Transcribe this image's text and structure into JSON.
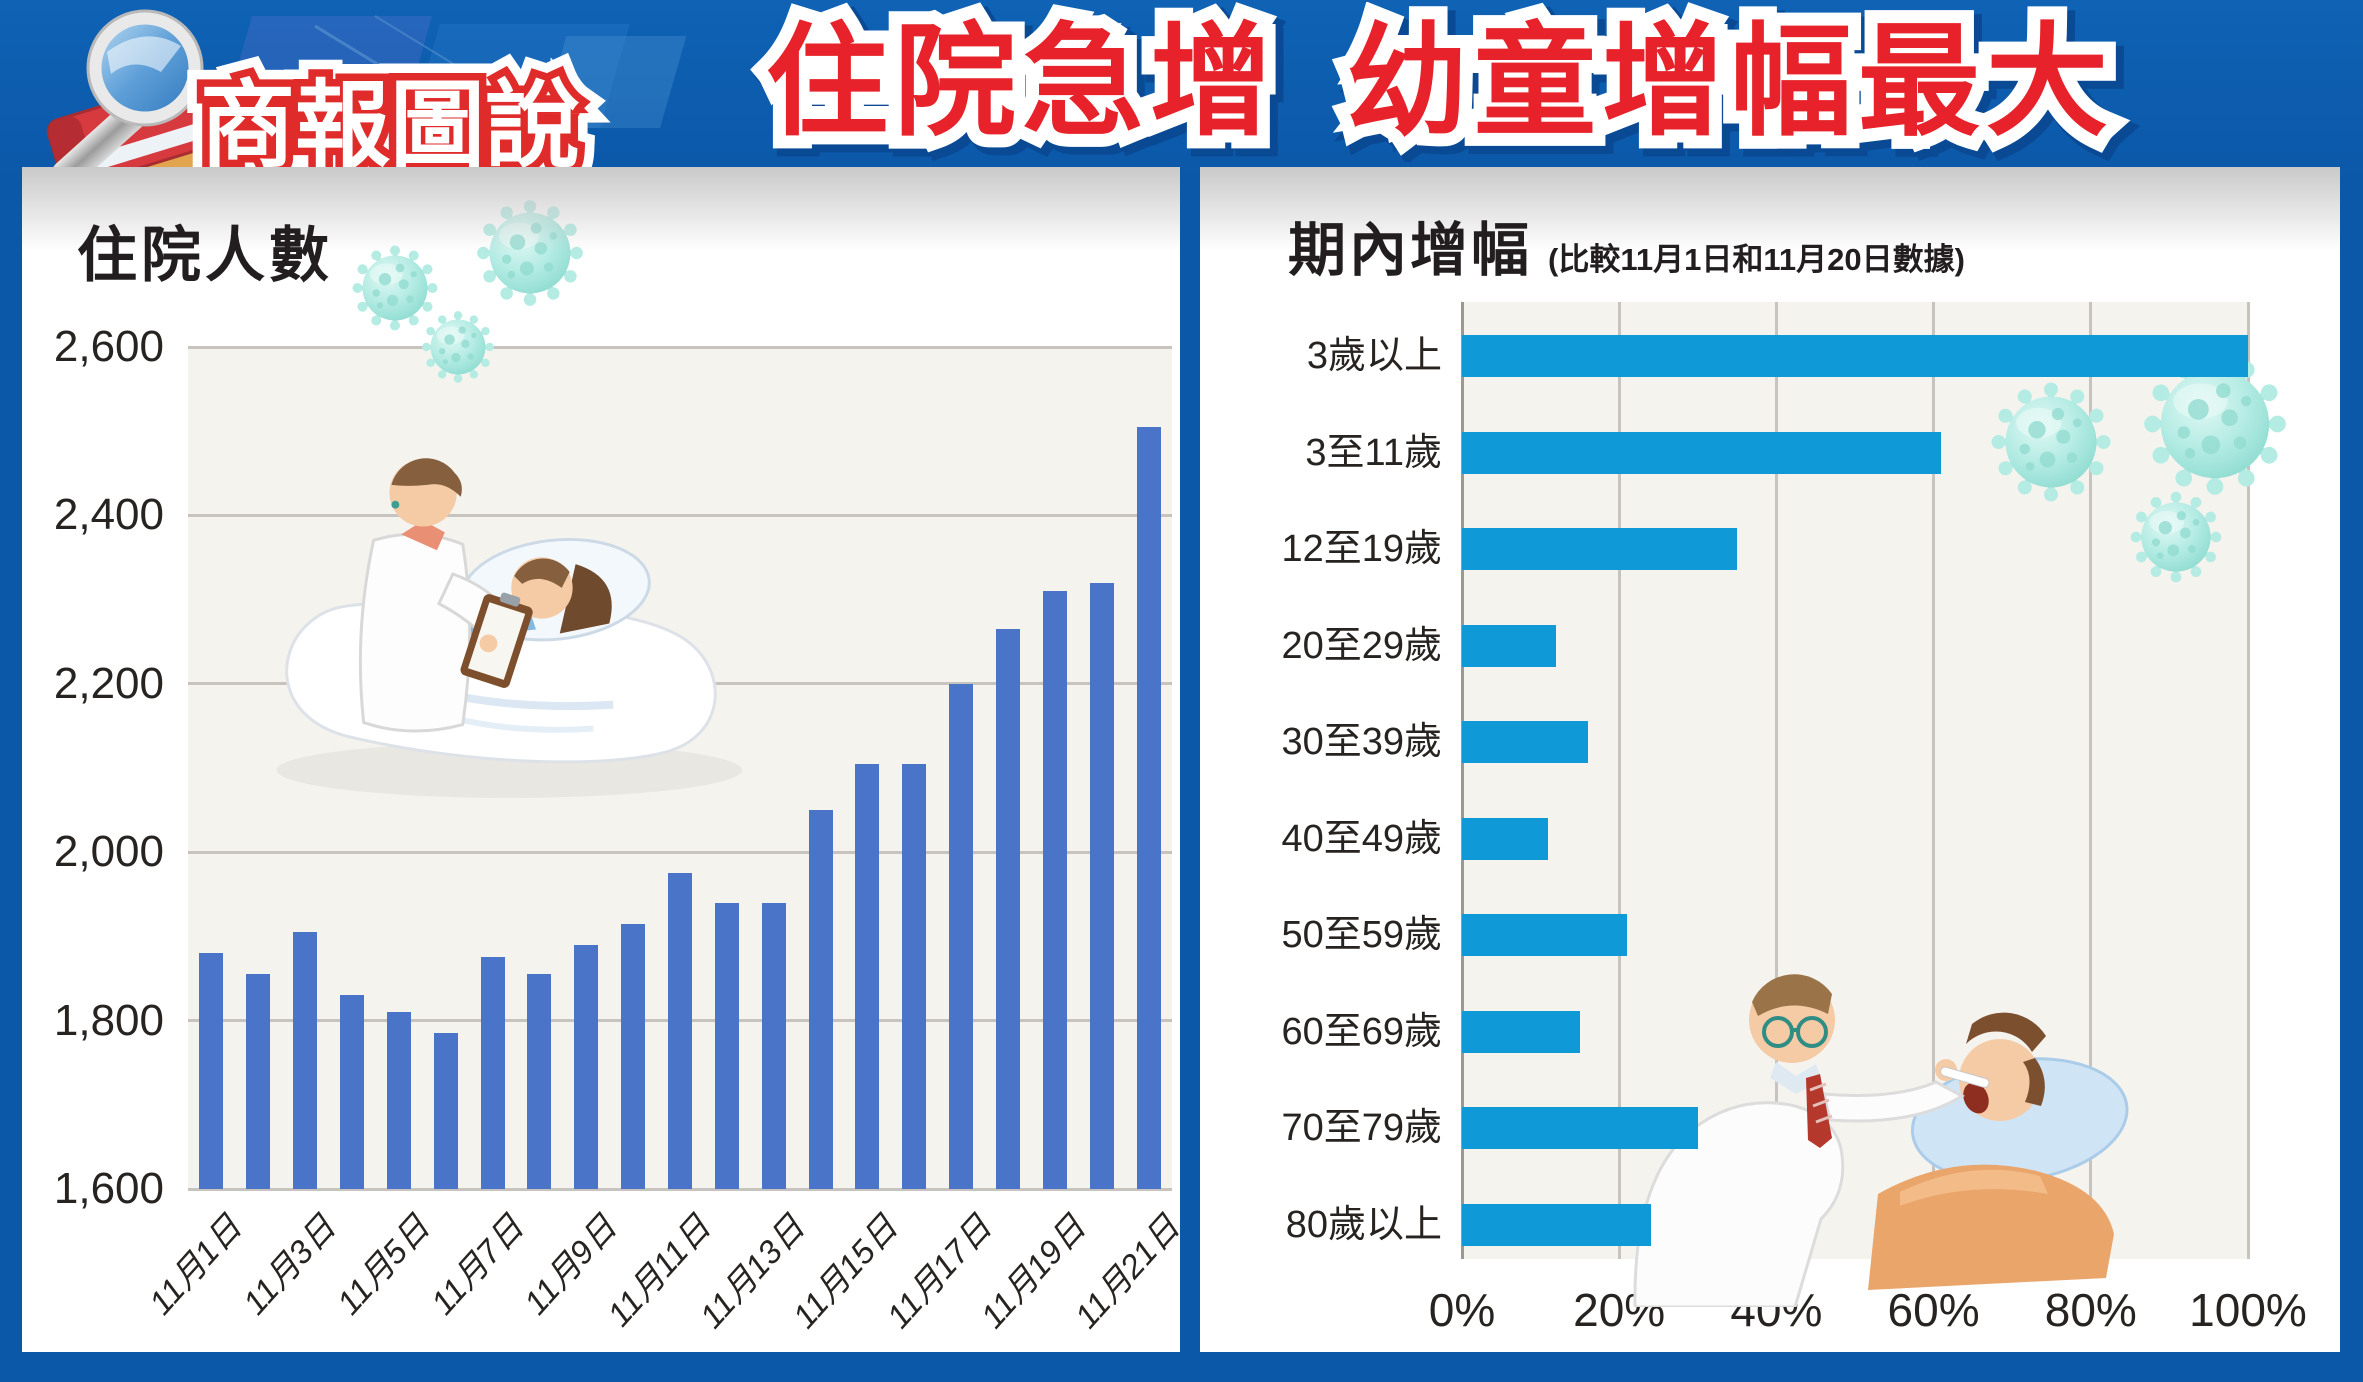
{
  "header": {
    "logo_text": "商報圖說",
    "title": "住院急增 幼童增幅最大"
  },
  "colors": {
    "page_blue": "#0b57a8",
    "title_red": "#e7222a",
    "title_shadow_blue": "#0a4a94",
    "left_bar_blue": "#4a74c8",
    "right_bar_blue": "#0f9ad7",
    "plot_background": "#f5f3ee",
    "gridline_gray": "#c7c4bf",
    "axis_gray": "#9c9994",
    "text_dark": "#272320"
  },
  "icons": {
    "logo": [
      "books-icon",
      "magnifier-icon"
    ],
    "decorations": [
      "virus-icon",
      "doctor-patient-illustration",
      "doctor-exam-illustration"
    ]
  },
  "chart_data": [
    {
      "type": "bar",
      "orientation": "vertical",
      "title": "住院人數",
      "ylim": [
        1600,
        2600
      ],
      "grid": true,
      "yticks": {
        "values": [
          2600,
          2400,
          2200,
          2000,
          1800,
          1600
        ],
        "labels": [
          "2,600",
          "2,400",
          "2,200",
          "2,000",
          "1,800",
          "1,600"
        ]
      },
      "x_labels": [
        "11月1日",
        "11月3日",
        "11月5日",
        "11月7日",
        "11月9日",
        "11月11日",
        "11月13日",
        "11月15日",
        "11月17日",
        "11月19日",
        "11月21日"
      ],
      "label_every": 2,
      "values": [
        1880,
        1855,
        1905,
        1830,
        1810,
        1785,
        1875,
        1855,
        1890,
        1915,
        1975,
        1940,
        1940,
        2050,
        2105,
        2105,
        2200,
        2265,
        2310,
        2320,
        2505
      ]
    },
    {
      "type": "bar",
      "orientation": "horizontal",
      "title": "期內增幅",
      "subtitle": "(比較11月1日和11月20日數據)",
      "xlim": [
        0,
        100
      ],
      "grid": true,
      "x_ticks": [
        "0%",
        "20%",
        "40%",
        "60%",
        "80%",
        "100%"
      ],
      "categories": [
        "3歲以上",
        "3至11歲",
        "12至19歲",
        "20至29歲",
        "30至39歲",
        "40至49歲",
        "50至59歲",
        "60至69歲",
        "70至79歲",
        "80歲以上"
      ],
      "values": [
        100,
        61,
        35,
        12,
        16,
        11,
        21,
        15,
        30,
        24
      ]
    }
  ]
}
